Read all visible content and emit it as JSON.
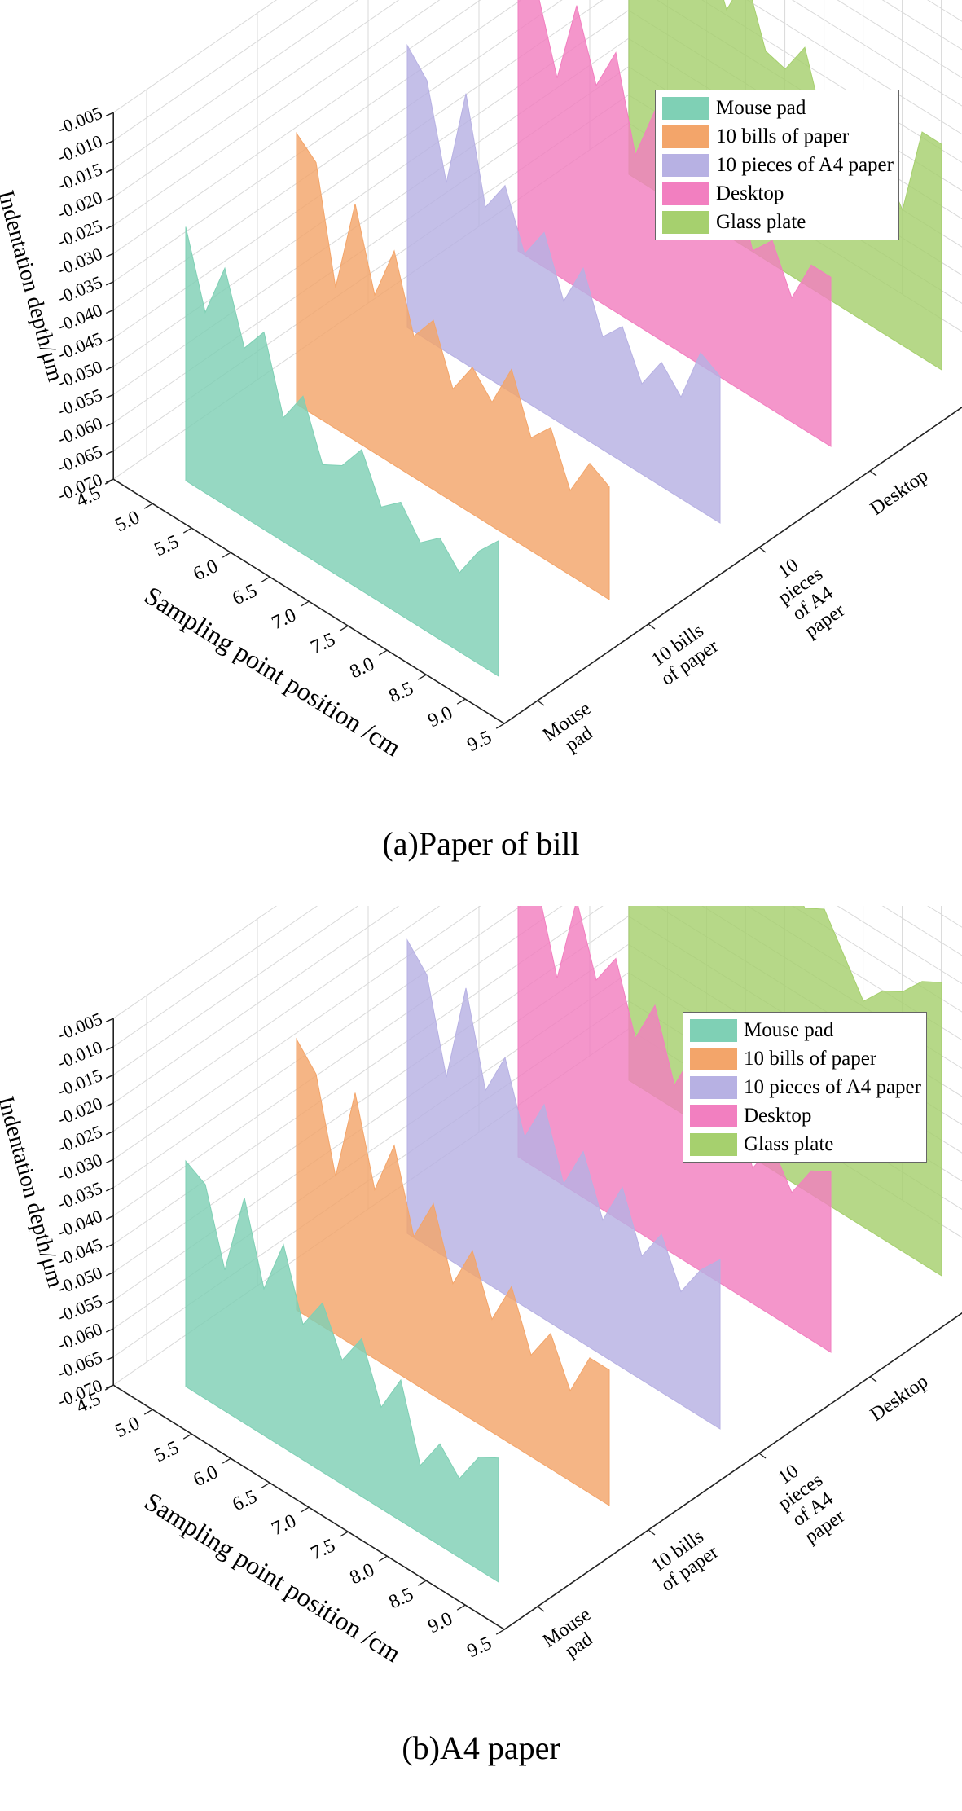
{
  "chart_data": [
    {
      "type": "area",
      "title": "(a)Paper of bill",
      "xlabel": "Sampling point position /cm",
      "ylabel": "Indentation depth/μm",
      "zlabel": "",
      "x_ticks": [
        "4.5",
        "5.0",
        "5.5",
        "6.0",
        "6.5",
        "7.0",
        "7.5",
        "8.0",
        "8.5",
        "9.0",
        "9.5"
      ],
      "y_ticks": [
        "-0.070",
        "-0.065",
        "-0.060",
        "-0.055",
        "-0.050",
        "-0.045",
        "-0.040",
        "-0.035",
        "-0.030",
        "-0.025",
        "-0.020",
        "-0.015",
        "-0.010",
        "-0.005"
      ],
      "category_ticks": [
        [
          "Mouse",
          "pad"
        ],
        [
          "10 bills",
          "of paper"
        ],
        [
          "10",
          "pieces",
          "of A4",
          "paper"
        ],
        [
          "Desktop"
        ],
        [
          "Glass",
          "plate"
        ]
      ],
      "xlim": [
        4.5,
        9.5
      ],
      "ylim": [
        -0.07,
        -0.005
      ],
      "legend_position": "top-right",
      "grid": true,
      "x": [
        5.0,
        5.25,
        5.5,
        5.75,
        6.0,
        6.25,
        6.5,
        6.75,
        7.0,
        7.25,
        7.5,
        7.75,
        8.0,
        8.25,
        8.5,
        8.75,
        9.0
      ],
      "series": [
        {
          "name": "Mouse pad",
          "color": "#7fd0b5",
          "values": [
            -0.025,
            -0.038,
            -0.028,
            -0.04,
            -0.035,
            -0.048,
            -0.042,
            -0.052,
            -0.05,
            -0.045,
            -0.053,
            -0.05,
            -0.055,
            -0.052,
            -0.056,
            -0.05,
            -0.046
          ]
        },
        {
          "name": "10 bills of paper",
          "color": "#f3a56a",
          "values": [
            -0.022,
            -0.025,
            -0.045,
            -0.028,
            -0.042,
            -0.032,
            -0.045,
            -0.04,
            -0.05,
            -0.044,
            -0.048,
            -0.04,
            -0.05,
            -0.046,
            -0.055,
            -0.048,
            -0.05
          ]
        },
        {
          "name": "10 pieces of A4 paper",
          "color": "#b7b1e3",
          "values": [
            -0.02,
            -0.024,
            -0.04,
            -0.022,
            -0.04,
            -0.034,
            -0.044,
            -0.038,
            -0.048,
            -0.04,
            -0.05,
            -0.046,
            -0.054,
            -0.048,
            -0.052,
            -0.042,
            -0.044
          ]
        },
        {
          "name": "Desktop",
          "color": "#f27fc0",
          "values": [
            -0.018,
            -0.022,
            -0.035,
            -0.02,
            -0.032,
            -0.024,
            -0.04,
            -0.03,
            -0.042,
            -0.036,
            -0.046,
            -0.032,
            -0.044,
            -0.04,
            -0.048,
            -0.04,
            -0.04
          ]
        },
        {
          "name": "Glass plate",
          "color": "#a6d06e",
          "values": [
            -0.015,
            -0.025,
            -0.015,
            -0.028,
            -0.02,
            -0.03,
            -0.022,
            -0.033,
            -0.034,
            -0.028,
            -0.04,
            -0.036,
            -0.042,
            -0.04,
            -0.046,
            -0.03,
            -0.03
          ]
        }
      ]
    },
    {
      "type": "area",
      "title": "(b)A4 paper",
      "xlabel": "Sampling point position /cm",
      "ylabel": "Indentation depth/μm",
      "zlabel": "",
      "x_ticks": [
        "4.5",
        "5.0",
        "5.5",
        "6.0",
        "6.5",
        "7.0",
        "7.5",
        "8.0",
        "8.5",
        "9.0",
        "9.5"
      ],
      "y_ticks": [
        "-0.070",
        "-0.065",
        "-0.060",
        "-0.055",
        "-0.050",
        "-0.045",
        "-0.040",
        "-0.035",
        "-0.030",
        "-0.025",
        "-0.020",
        "-0.015",
        "-0.010",
        "-0.005"
      ],
      "category_ticks": [
        [
          "Mouse",
          "pad"
        ],
        [
          "10 bills",
          "of paper"
        ],
        [
          "10",
          "pieces",
          "of A4",
          "paper"
        ],
        [
          "Desktop"
        ],
        [
          "Glass",
          "plate"
        ]
      ],
      "xlim": [
        4.5,
        9.5
      ],
      "ylim": [
        -0.07,
        -0.005
      ],
      "legend_position": "top-right",
      "grid": true,
      "x": [
        5.0,
        5.25,
        5.5,
        5.75,
        6.0,
        6.25,
        6.5,
        6.75,
        7.0,
        7.25,
        7.5,
        7.75,
        8.0,
        8.25,
        8.5,
        8.75,
        9.0
      ],
      "series": [
        {
          "name": "Mouse pad",
          "color": "#7fd0b5",
          "values": [
            -0.03,
            -0.032,
            -0.045,
            -0.03,
            -0.044,
            -0.034,
            -0.046,
            -0.04,
            -0.048,
            -0.042,
            -0.052,
            -0.045,
            -0.058,
            -0.052,
            -0.056,
            -0.05,
            -0.048
          ]
        },
        {
          "name": "10 bills of paper",
          "color": "#f3a56a",
          "values": [
            -0.022,
            -0.026,
            -0.042,
            -0.025,
            -0.04,
            -0.03,
            -0.044,
            -0.036,
            -0.048,
            -0.04,
            -0.05,
            -0.042,
            -0.052,
            -0.046,
            -0.054,
            -0.046,
            -0.046
          ]
        },
        {
          "name": "10 pieces of A4 paper",
          "color": "#b7b1e3",
          "values": [
            -0.018,
            -0.022,
            -0.038,
            -0.02,
            -0.036,
            -0.028,
            -0.04,
            -0.032,
            -0.044,
            -0.036,
            -0.046,
            -0.038,
            -0.048,
            -0.042,
            -0.05,
            -0.044,
            -0.04
          ]
        },
        {
          "name": "Desktop",
          "color": "#f27fc0",
          "values": [
            -0.016,
            -0.02,
            -0.034,
            -0.018,
            -0.03,
            -0.024,
            -0.036,
            -0.028,
            -0.04,
            -0.032,
            -0.042,
            -0.036,
            -0.046,
            -0.04,
            -0.046,
            -0.04,
            -0.038
          ]
        },
        {
          "name": "Glass plate",
          "color": "#a6d06e",
          "values": [
            -0.008,
            -0.012,
            -0.008,
            -0.014,
            -0.01,
            -0.016,
            -0.012,
            -0.018,
            -0.014,
            -0.02,
            -0.018,
            -0.024,
            -0.03,
            -0.026,
            -0.024,
            -0.02,
            -0.018
          ]
        }
      ]
    }
  ]
}
